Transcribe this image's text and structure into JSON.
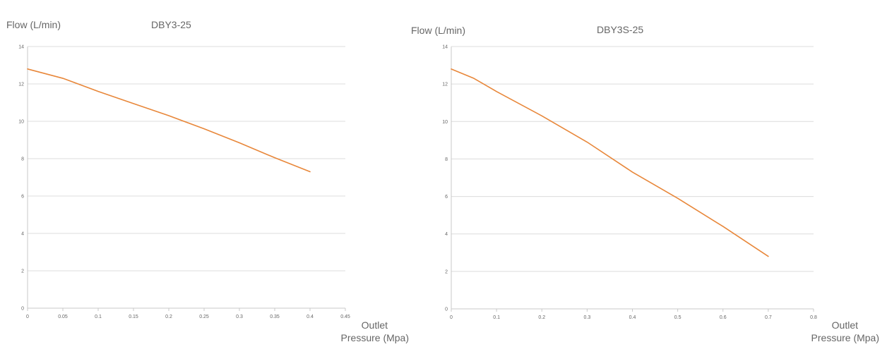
{
  "chart_data": [
    {
      "type": "line",
      "title": "DBY3-25",
      "ylabel": "Flow  (L/min)",
      "xlabel_line1": "Outlet",
      "xlabel_line2": "Pressure  (Mpa)",
      "xlim": [
        0,
        0.45
      ],
      "ylim": [
        0,
        14
      ],
      "x_ticks": [
        "0",
        "0.05",
        "0.1",
        "0.15",
        "0.2",
        "0.25",
        "0.3",
        "0.35",
        "0.4",
        "0.45"
      ],
      "y_ticks": [
        "0",
        "2",
        "4",
        "6",
        "8",
        "10",
        "12",
        "14"
      ],
      "grid": true,
      "line_color": "#e8873a",
      "series": [
        {
          "x": [
            0,
            0.05,
            0.1,
            0.15,
            0.2,
            0.25,
            0.3,
            0.35,
            0.4
          ],
          "y": [
            12.8,
            12.3,
            11.6,
            10.95,
            10.3,
            9.6,
            8.85,
            8.05,
            7.3
          ]
        }
      ]
    },
    {
      "type": "line",
      "title": "DBY3S-25",
      "ylabel": "Flow  (L/min)",
      "xlabel_line1": "Outlet",
      "xlabel_line2": "Pressure  (Mpa)",
      "xlim": [
        0,
        0.8
      ],
      "ylim": [
        0,
        14
      ],
      "x_ticks": [
        "0",
        "0.1",
        "0.2",
        "0.3",
        "0.4",
        "0.5",
        "0.6",
        "0.7",
        "0.8"
      ],
      "y_ticks": [
        "0",
        "2",
        "4",
        "6",
        "8",
        "10",
        "12",
        "14"
      ],
      "grid": true,
      "line_color": "#e8873a",
      "series": [
        {
          "x": [
            0,
            0.05,
            0.1,
            0.2,
            0.3,
            0.4,
            0.5,
            0.6,
            0.7
          ],
          "y": [
            12.8,
            12.3,
            11.6,
            10.3,
            8.9,
            7.3,
            5.9,
            4.4,
            2.8
          ]
        }
      ]
    }
  ]
}
